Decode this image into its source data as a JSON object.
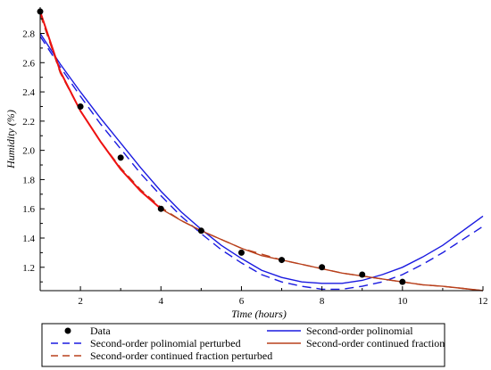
{
  "chart_data": {
    "type": "line",
    "xlabel": "Time (hours)",
    "ylabel": "Humidity (%)",
    "xlim": [
      1,
      12
    ],
    "ylim": [
      1.04,
      2.98
    ],
    "x_ticks": [
      2,
      4,
      6,
      8,
      10,
      12
    ],
    "y_ticks": [
      1.2,
      1.4,
      1.6,
      1.8,
      2.0,
      2.2,
      2.4,
      2.6,
      2.8
    ],
    "grid": false,
    "legend_position": "bottom",
    "series": [
      {
        "name": "Data",
        "style": "marker",
        "color": "#000000",
        "x": [
          1,
          2,
          3,
          4,
          5,
          6,
          7,
          8,
          9,
          10
        ],
        "y": [
          2.95,
          2.3,
          1.95,
          1.6,
          1.45,
          1.3,
          1.25,
          1.2,
          1.15,
          1.1
        ]
      },
      {
        "name": "Second-order polinomial",
        "style": "solid",
        "color": "#1a1ae0",
        "x": [
          1,
          1.5,
          2,
          2.5,
          3,
          3.5,
          4,
          4.5,
          5,
          5.5,
          6,
          6.5,
          7,
          7.5,
          8,
          8.5,
          9,
          9.5,
          10,
          10.5,
          11,
          11.5,
          12
        ],
        "y": [
          2.8,
          2.59,
          2.4,
          2.22,
          2.05,
          1.88,
          1.72,
          1.58,
          1.46,
          1.35,
          1.26,
          1.18,
          1.13,
          1.1,
          1.09,
          1.09,
          1.11,
          1.15,
          1.2,
          1.27,
          1.35,
          1.45,
          1.55
        ]
      },
      {
        "name": "Second-order polinomial perturbed",
        "style": "dashed",
        "color": "#1a1ae0",
        "x": [
          1,
          1.5,
          2,
          2.5,
          3,
          3.5,
          4,
          4.5,
          5,
          5.5,
          6,
          6.5,
          7,
          7.5,
          8,
          8.5,
          9,
          9.5,
          10,
          10.5,
          11,
          11.5,
          12
        ],
        "y": [
          2.78,
          2.57,
          2.37,
          2.18,
          2.01,
          1.84,
          1.69,
          1.55,
          1.43,
          1.32,
          1.23,
          1.15,
          1.1,
          1.07,
          1.05,
          1.05,
          1.07,
          1.1,
          1.15,
          1.22,
          1.3,
          1.39,
          1.48
        ]
      },
      {
        "name": "Second-order continued fraction",
        "style": "solid",
        "color": "#b8401c",
        "x": [
          1,
          1.5,
          2,
          2.5,
          3,
          3.5,
          4,
          4.5,
          5,
          5.5,
          6,
          6.5,
          7,
          7.5,
          8,
          8.5,
          9,
          9.5,
          10,
          10.5,
          11,
          11.5,
          12
        ],
        "y": [
          2.95,
          2.54,
          2.27,
          2.06,
          1.87,
          1.72,
          1.6,
          1.52,
          1.45,
          1.39,
          1.33,
          1.28,
          1.25,
          1.22,
          1.19,
          1.16,
          1.14,
          1.12,
          1.1,
          1.08,
          1.07,
          1.055,
          1.04
        ]
      },
      {
        "name": "Second-order continued fraction perturbed",
        "style": "dashed",
        "color": "#b8401c",
        "x": [
          1,
          1.5,
          2,
          2.5,
          3,
          3.5,
          4,
          4.5,
          5,
          5.5,
          6,
          6.5,
          7,
          7.5,
          8,
          8.5,
          9,
          9.5,
          10,
          10.5,
          11,
          11.5,
          12
        ],
        "y": [
          2.93,
          2.53,
          2.27,
          2.06,
          1.88,
          1.73,
          1.61,
          1.52,
          1.45,
          1.39,
          1.33,
          1.29,
          1.25,
          1.22,
          1.19,
          1.16,
          1.14,
          1.12,
          1.1,
          1.08,
          1.07,
          1.055,
          1.04
        ]
      },
      {
        "name": "",
        "style": "solid",
        "color": "#ee1111",
        "x": [
          1,
          1.5,
          2,
          2.5,
          3,
          3.5,
          4
        ],
        "y": [
          2.95,
          2.54,
          2.27,
          2.06,
          1.87,
          1.72,
          1.6
        ]
      }
    ]
  }
}
